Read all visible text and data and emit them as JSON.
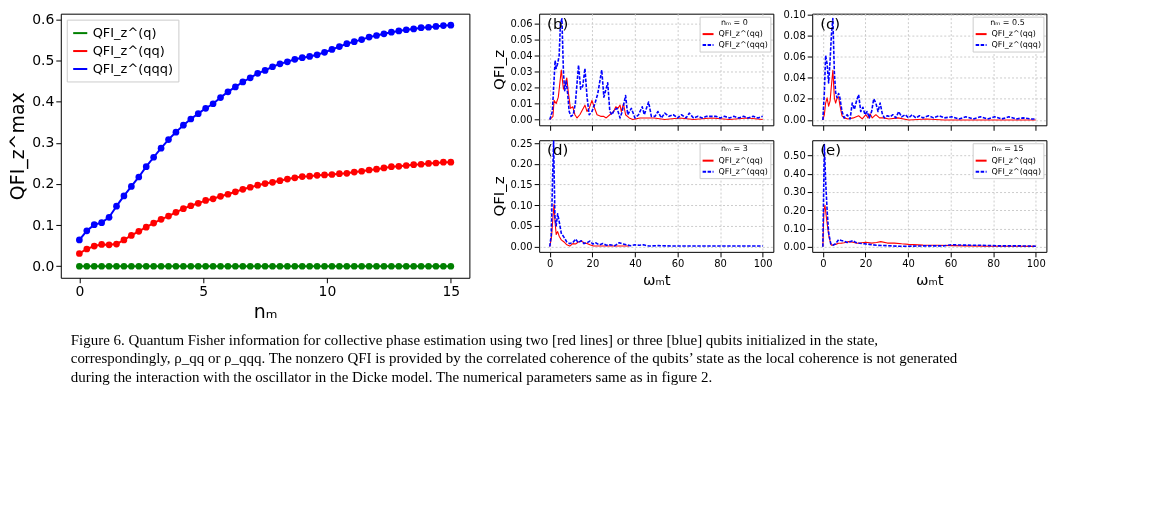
{
  "chart_data": [
    {
      "type": "line",
      "xlabel": "nₘ",
      "ylabel": "QFI_z^max",
      "legend": "top left",
      "marker": "circle",
      "grid": false,
      "xlim": [
        -0.75,
        15.75
      ],
      "ylim": [
        -0.028,
        0.614
      ],
      "xticks": [
        0,
        5,
        10,
        15
      ],
      "yticks": [
        {
          "value": 0,
          "label": "0.0"
        },
        {
          "value": 0.1,
          "label": "0.1"
        },
        {
          "value": 0.2,
          "label": "0.2"
        },
        {
          "value": 0.3,
          "label": "0.3"
        },
        {
          "value": 0.4,
          "label": "0.4"
        },
        {
          "value": 0.5,
          "label": "0.5"
        },
        {
          "value": 0.6,
          "label": "0.6"
        }
      ],
      "x": [
        0,
        0.3,
        0.6,
        0.9,
        1.2,
        1.5,
        1.8,
        2.1,
        2.4,
        2.7,
        3,
        3.3,
        3.6,
        3.9,
        4.2,
        4.5,
        4.8,
        5.1,
        5.4,
        5.7,
        6,
        6.3,
        6.6,
        6.9,
        7.2,
        7.5,
        7.8,
        8.1,
        8.4,
        8.7,
        9,
        9.3,
        9.6,
        9.9,
        10.2,
        10.5,
        10.8,
        11.1,
        11.4,
        11.7,
        12,
        12.3,
        12.6,
        12.9,
        13.2,
        13.5,
        13.8,
        14.1,
        14.4,
        14.7,
        15
      ],
      "series": [
        {
          "name": "QFI_z^(q)",
          "color": "#008000",
          "values": [
            0,
            0,
            0,
            0,
            0,
            0,
            0,
            0,
            0,
            0,
            0,
            0,
            0,
            0,
            0,
            0,
            0,
            0,
            0,
            0,
            0,
            0,
            0,
            0,
            0,
            0,
            0,
            0,
            0,
            0,
            0,
            0,
            0,
            0,
            0,
            0,
            0,
            0,
            0,
            0,
            0,
            0,
            0,
            0,
            0,
            0,
            0,
            0,
            0,
            0,
            0
          ]
        },
        {
          "name": "QFI_z^(qq)",
          "color": "#ff0000",
          "values": [
            0.031,
            0.042,
            0.049,
            0.053,
            0.052,
            0.054,
            0.064,
            0.075,
            0.085,
            0.095,
            0.105,
            0.114,
            0.122,
            0.131,
            0.14,
            0.147,
            0.153,
            0.16,
            0.164,
            0.17,
            0.175,
            0.181,
            0.187,
            0.192,
            0.197,
            0.201,
            0.204,
            0.208,
            0.212,
            0.215,
            0.218,
            0.219,
            0.221,
            0.222,
            0.223,
            0.225,
            0.226,
            0.229,
            0.231,
            0.234,
            0.236,
            0.239,
            0.242,
            0.243,
            0.245,
            0.247,
            0.248,
            0.25,
            0.251,
            0.253,
            0.253
          ]
        },
        {
          "name": "QFI_z^(qqq)",
          "color": "#0000ff",
          "values": [
            0.064,
            0.086,
            0.101,
            0.106,
            0.119,
            0.146,
            0.171,
            0.194,
            0.217,
            0.242,
            0.265,
            0.287,
            0.308,
            0.326,
            0.343,
            0.358,
            0.371,
            0.384,
            0.395,
            0.41,
            0.424,
            0.436,
            0.448,
            0.458,
            0.469,
            0.476,
            0.485,
            0.492,
            0.497,
            0.503,
            0.507,
            0.51,
            0.514,
            0.52,
            0.527,
            0.534,
            0.541,
            0.546,
            0.551,
            0.557,
            0.561,
            0.565,
            0.569,
            0.572,
            0.575,
            0.577,
            0.58,
            0.581,
            0.583,
            0.585,
            0.586
          ]
        }
      ],
      "annotations": [
        "Figure 6. Quantum Fisher information for collective phase estimation using two [red lines] or three [blue] qubits initialized in the state, correspondingly, ρ_qq or ρ_qqq. The nonzero QFI is provided by the correlated coherence of the qubits’ state as the local coherence is not generated during the interaction with the oscillator in the Dicke model. The numerical parameters same as in figure 2."
      ]
    },
    {
      "type": "line",
      "ylabel": "QFI_z",
      "legend": "top right",
      "legend_title": "nₘ = 0",
      "grid": true,
      "tick_labels": "y",
      "xlim": [
        -5,
        105
      ],
      "ylim": [
        -0.0036,
        0.0662
      ],
      "xticks": [
        0,
        20,
        40,
        60,
        80,
        100
      ],
      "yticks": [
        {
          "value": 0,
          "label": "0.00"
        },
        {
          "value": 0.01,
          "label": "0.01"
        },
        {
          "value": 0.02,
          "label": "0.02"
        },
        {
          "value": 0.03,
          "label": "0.03"
        },
        {
          "value": 0.04,
          "label": "0.04"
        },
        {
          "value": 0.05,
          "label": "0.05"
        },
        {
          "value": 0.06,
          "label": "0.06"
        }
      ],
      "series": [
        {
          "name": "QFI_z^(qq)",
          "color": "#ff0000",
          "line_style": "solid",
          "x": [
            0,
            1.5,
            2,
            3,
            4,
            5.4,
            6.4,
            7,
            8,
            8.7,
            9.7,
            10.8,
            11.8,
            12.8,
            14.1,
            16.5,
            17.5,
            18.5,
            19.8,
            20.8,
            22.2,
            23.9,
            25.2,
            26.5,
            28.2,
            30,
            31,
            32,
            33,
            33.6,
            34.6,
            35.6,
            37.3,
            39,
            42.4,
            45.7,
            49,
            54,
            61,
            67.5,
            76,
            84.4,
            92.8,
            100
          ],
          "values": [
            0,
            0.002,
            0.012,
            0.01,
            0.014,
            0.031,
            0.019,
            0.021,
            0.026,
            0.017,
            0.007,
            0.008,
            0.003,
            0.001,
            0.003,
            0.009,
            0.005,
            0.007,
            0.012,
            0.008,
            0.003,
            0.002,
            0.002,
            0.001,
            0.003,
            0.005,
            0.008,
            0.007,
            0.009,
            0.005,
            0.01,
            0.003,
            0.001,
            0.0,
            0.001,
            0.001,
            0.001,
            0.0,
            0.001,
            0.0,
            0.001,
            0.0,
            0.001,
            0.0
          ]
        },
        {
          "name": "QFI_z^(qqq)",
          "color": "#0000ff",
          "line_style": "dashed",
          "x": [
            0,
            1.2,
            2.5,
            3,
            3.7,
            4.4,
            5,
            5.7,
            6.4,
            7,
            7.7,
            8.4,
            9.1,
            10,
            11,
            12,
            13.5,
            14.5,
            15.5,
            16.5,
            17.5,
            18.5,
            19.8,
            21.2,
            22.5,
            24.4,
            25.4,
            26.4,
            27.2,
            28.2,
            29.2,
            30.3,
            31.6,
            33,
            34,
            35.6,
            36.6,
            38.3,
            40,
            41.7,
            43.4,
            44.4,
            46.4,
            47.7,
            49.4,
            50.8,
            52.4,
            54,
            56,
            58,
            60,
            61.8,
            64,
            65.5,
            67.5,
            69.6,
            71.6,
            73.6,
            76,
            78,
            80,
            82,
            84.4,
            86.4,
            88.7,
            91,
            93,
            95.5,
            97.8,
            100
          ],
          "values": [
            0,
            0.005,
            0.037,
            0.032,
            0.035,
            0.04,
            0.06,
            0.063,
            0.03,
            0.018,
            0.024,
            0.016,
            0.005,
            0.002,
            0.003,
            0.01,
            0.034,
            0.019,
            0.021,
            0.032,
            0.014,
            0.003,
            0.005,
            0.01,
            0.016,
            0.031,
            0.014,
            0.019,
            0.023,
            0.005,
            0.003,
            0.006,
            0.007,
            0.001,
            0.005,
            0.015,
            0.003,
            0.007,
            0.001,
            0.003,
            0.008,
            0.003,
            0.011,
            0.002,
            0.002,
            0.005,
            0.001,
            0.004,
            0.002,
            0.003,
            0.001,
            0.003,
            0.001,
            0.004,
            0.001,
            0.002,
            0.001,
            0.002,
            0.002,
            0.002,
            0.001,
            0.002,
            0.001,
            0.002,
            0.001,
            0.002,
            0.001,
            0.002,
            0.001,
            0.002
          ]
        }
      ],
      "annotations": [
        "(b)"
      ]
    },
    {
      "type": "line",
      "legend": "top right",
      "legend_title": "nₘ = 0.5",
      "grid": true,
      "tick_labels": "y",
      "xlim": [
        -5,
        105
      ],
      "ylim": [
        -0.005,
        0.1005
      ],
      "xticks": [
        0,
        20,
        40,
        60,
        80,
        100
      ],
      "yticks": [
        {
          "value": 0,
          "label": "0.00"
        },
        {
          "value": 0.02,
          "label": "0.02"
        },
        {
          "value": 0.04,
          "label": "0.04"
        },
        {
          "value": 0.06,
          "label": "0.06"
        },
        {
          "value": 0.08,
          "label": "0.08"
        },
        {
          "value": 0.1,
          "label": "0.10"
        }
      ],
      "series": [
        {
          "name": "QFI_z^(qq)",
          "color": "#ff0000",
          "line_style": "solid",
          "x": [
            0,
            0.7,
            1.3,
            2,
            2.7,
            3.4,
            4,
            4.7,
            5.4,
            6,
            6.7,
            7.4,
            8,
            9,
            10,
            11.8,
            14.3,
            16.8,
            18.5,
            20.2,
            21.2,
            22.2,
            23.2,
            24.9,
            26.6,
            28.6,
            31,
            35.3,
            40.3,
            48.7,
            57,
            74,
            90.8,
            100
          ],
          "values": [
            0,
            0.005,
            0.016,
            0.021,
            0.013,
            0.018,
            0.032,
            0.047,
            0.021,
            0.016,
            0.021,
            0.022,
            0.014,
            0.004,
            0.002,
            0.001,
            0.002,
            0.004,
            0.001,
            0.005,
            0.002,
            0.006,
            0.002,
            0.005,
            0.002,
            0.002,
            0.001,
            0.002,
            0.0,
            0.001,
            0.0,
            0.0,
            0.0,
            0.0
          ]
        },
        {
          "name": "QFI_z^(qqq)",
          "color": "#0000ff",
          "line_style": "dashed",
          "x": [
            0,
            0.7,
            1.3,
            2,
            2.7,
            3.4,
            4,
            4.7,
            5.4,
            6,
            6.7,
            7.4,
            8,
            9,
            10,
            11.4,
            12.8,
            13.8,
            14.8,
            15.8,
            16.8,
            17.8,
            18.8,
            19.8,
            20.8,
            21.8,
            22.9,
            23.9,
            24.9,
            25.9,
            26.9,
            27.9,
            28.9,
            30.3,
            31.6,
            32.9,
            34.3,
            35.6,
            37,
            38.7,
            40.3,
            42,
            43.7,
            45.4,
            47,
            49.6,
            52,
            54.6,
            57,
            60.5,
            63.9,
            67.2,
            70.6,
            74,
            77.3,
            80.7,
            84,
            87.4,
            90.8,
            94,
            97.5,
            100
          ],
          "values": [
            0,
            0.026,
            0.061,
            0.053,
            0.035,
            0.056,
            0.08,
            0.096,
            0.045,
            0.026,
            0.021,
            0.025,
            0.021,
            0.008,
            0.002,
            0.005,
            0.001,
            0.016,
            0.01,
            0.018,
            0.024,
            0.008,
            0.012,
            0.005,
            0.008,
            0.002,
            0.008,
            0.02,
            0.016,
            0.008,
            0.016,
            0.006,
            0.002,
            0.004,
            0.003,
            0.005,
            0.002,
            0.008,
            0.003,
            0.005,
            0.002,
            0.005,
            0.002,
            0.004,
            0.002,
            0.004,
            0.002,
            0.004,
            0.002,
            0.003,
            0.001,
            0.003,
            0.001,
            0.003,
            0.001,
            0.003,
            0.001,
            0.003,
            0.001,
            0.002,
            0.001,
            0.001
          ]
        }
      ],
      "annotations": [
        "(c)"
      ]
    },
    {
      "type": "line",
      "xlabel": "ωₘt",
      "ylabel": "QFI_z",
      "legend": "top right",
      "legend_title": "nₘ = 3",
      "grid": true,
      "xlim": [
        -5,
        105
      ],
      "ylim": [
        -0.013,
        0.2572
      ],
      "xticks": [
        0,
        20,
        40,
        60,
        80,
        100
      ],
      "yticks": [
        {
          "value": 0,
          "label": "0.00"
        },
        {
          "value": 0.05,
          "label": "0.05"
        },
        {
          "value": 0.1,
          "label": "0.10"
        },
        {
          "value": 0.15,
          "label": "0.15"
        },
        {
          "value": 0.2,
          "label": "0.20"
        },
        {
          "value": 0.25,
          "label": "0.25"
        }
      ],
      "series": [
        {
          "name": "QFI_z^(qq)",
          "color": "#ff0000",
          "line_style": "solid",
          "x": [
            0,
            0.8,
            1.5,
            2,
            2.5,
            3,
            3.7,
            4.4,
            5.4,
            6.7,
            8,
            9.4,
            10.8,
            12.1,
            13.4,
            14.8,
            16.1,
            17.5,
            18.8,
            20.5,
            23.9,
            28.9,
            37.3
          ],
          "values": [
            0,
            0.022,
            0.072,
            0.102,
            0.057,
            0.029,
            0.036,
            0.025,
            0.016,
            0.011,
            0.004,
            0.001,
            0.007,
            0.006,
            0.011,
            0.013,
            0.009,
            0.007,
            0.004,
            0.001,
            0.001,
            0.001,
            0.001
          ]
        },
        {
          "name": "QFI_z^(qqq)",
          "color": "#0000ff",
          "line_style": "dashed",
          "x": [
            0,
            0.7,
            1.3,
            1.8,
            2.4,
            3,
            3.7,
            4.4,
            5.4,
            6.7,
            8,
            9.4,
            10.8,
            12.1,
            13.4,
            14.8,
            16.1,
            17.5,
            18.8,
            20.2,
            21.5,
            23.2,
            24.9,
            26.6,
            28.2,
            30.6,
            32.6,
            34.3,
            36,
            38,
            40,
            42,
            44,
            46.6,
            50.8,
            59,
            67.6,
            76,
            84.4,
            92.8,
            100
          ],
          "values": [
            0,
            0.029,
            0.165,
            0.255,
            0.072,
            0.05,
            0.079,
            0.061,
            0.032,
            0.022,
            0.011,
            0.007,
            0.009,
            0.018,
            0.009,
            0.014,
            0.007,
            0.009,
            0.013,
            0.006,
            0.009,
            0.004,
            0.007,
            0.003,
            0.004,
            0.002,
            0.009,
            0.006,
            0.004,
            0.002,
            0.004,
            0.003,
            0.004,
            0.001,
            0.002,
            0.001,
            0.001,
            0.001,
            0.001,
            0.001,
            0.001
          ]
        }
      ],
      "annotations": [
        "(d)"
      ]
    },
    {
      "type": "line",
      "xlabel": "ωₘt",
      "legend": "top right",
      "legend_title": "nₘ = 15",
      "grid": true,
      "xlim": [
        -5,
        105
      ],
      "ylim": [
        -0.028,
        0.583
      ],
      "xticks": [
        0,
        20,
        40,
        60,
        80,
        100
      ],
      "yticks": [
        {
          "value": 0,
          "label": "0.00"
        },
        {
          "value": 0.1,
          "label": "0.10"
        },
        {
          "value": 0.2,
          "label": "0.20"
        },
        {
          "value": 0.3,
          "label": "0.30"
        },
        {
          "value": 0.4,
          "label": "0.40"
        },
        {
          "value": 0.5,
          "label": "0.50"
        }
      ],
      "series": [
        {
          "name": "QFI_z^(qq)",
          "color": "#ff0000",
          "line_style": "solid",
          "x": [
            0,
            0.5,
            1,
            1.7,
            2.4,
            3,
            4,
            5,
            6,
            7.4,
            8.7,
            10,
            12.1,
            14.1,
            16.1,
            18.2,
            20.2,
            22.9,
            25.2,
            27.2,
            30.3,
            33.6,
            37,
            40.3,
            47,
            53.8,
            60.5,
            67.2,
            77.3,
            90.8,
            100
          ],
          "values": [
            0,
            0.2,
            0.227,
            0.156,
            0.094,
            0.047,
            0.008,
            0.011,
            0.013,
            0.019,
            0.02,
            0.022,
            0.028,
            0.025,
            0.019,
            0.022,
            0.025,
            0.02,
            0.023,
            0.028,
            0.02,
            0.02,
            0.016,
            0.013,
            0.009,
            0.008,
            0.006,
            0.005,
            0.003,
            0.003,
            0.002
          ]
        },
        {
          "name": "QFI_z^(qqq)",
          "color": "#0000ff",
          "line_style": "dashed",
          "x": [
            0,
            0.7,
            1.3,
            2,
            2.7,
            3.7,
            4.7,
            6,
            7.4,
            8.7,
            10,
            11.4,
            12.8,
            14.1,
            15.5,
            17.1,
            19.5,
            21.8,
            25.2,
            30.3,
            35.3,
            40.3,
            48.7,
            57,
            60.5,
            65.5,
            74,
            82.4,
            90.8,
            100
          ],
          "values": [
            0,
            0.56,
            0.36,
            0.2,
            0.078,
            0.016,
            0.008,
            0.016,
            0.039,
            0.034,
            0.031,
            0.023,
            0.028,
            0.034,
            0.023,
            0.019,
            0.016,
            0.013,
            0.008,
            0.006,
            0.003,
            0.003,
            0.005,
            0.005,
            0.011,
            0.009,
            0.008,
            0.005,
            0.005,
            0.003
          ]
        }
      ],
      "annotations": [
        "(e)"
      ]
    }
  ]
}
